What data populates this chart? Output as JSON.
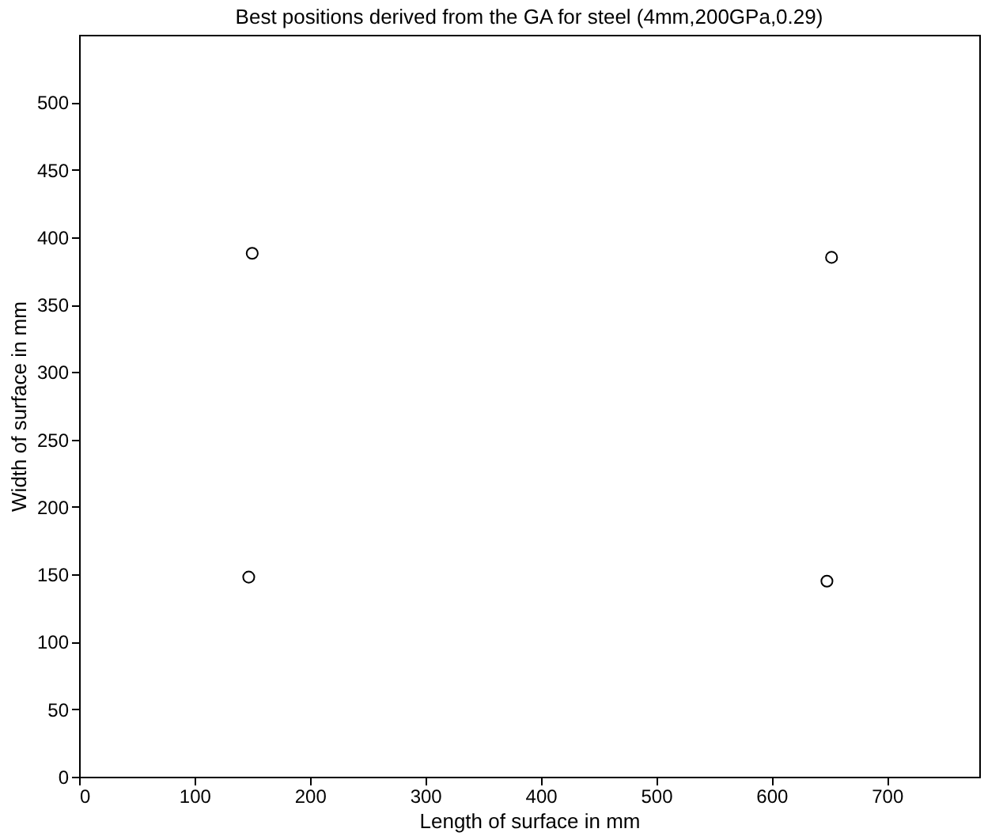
{
  "chart_data": {
    "type": "scatter",
    "title": "Best positions derived from the GA for steel (4mm,200GPa,0.29)",
    "xlabel": "Length of surface in mm",
    "ylabel": "Width of surface in mm",
    "x": [
      150,
      652,
      147,
      648
    ],
    "values": [
      388,
      385,
      148,
      145
    ],
    "color": "#000000",
    "marker": "circle",
    "xlim": [
      0,
      780
    ],
    "ylim": [
      0,
      550
    ],
    "xticks": [
      0,
      100,
      200,
      300,
      400,
      500,
      600,
      700
    ],
    "yticks": [
      0,
      50,
      100,
      150,
      200,
      250,
      300,
      350,
      400,
      450,
      500
    ],
    "grid": false
  }
}
